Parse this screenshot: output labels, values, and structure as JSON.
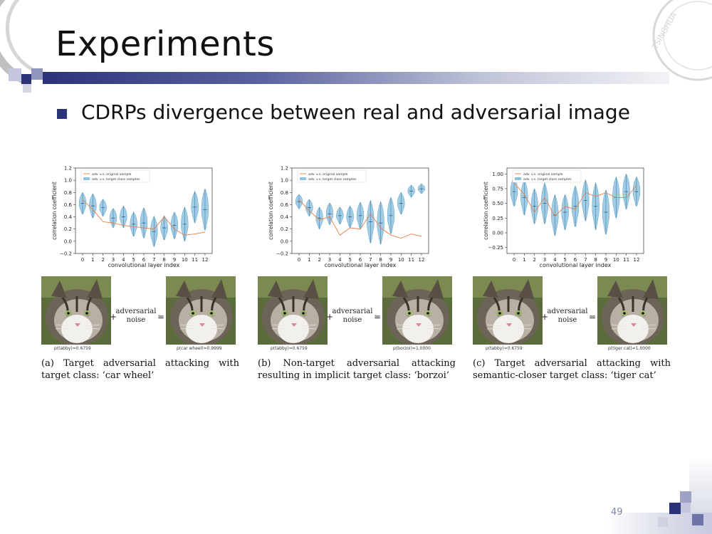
{
  "slide": {
    "title": "Experiments",
    "bullet": "CDRPs divergence between real and adversarial image",
    "page_number": "49",
    "accent_color": "#2b3479"
  },
  "panels": [
    {
      "id": "a",
      "caption": "(a) Target adversarial attacking with target class: ‘car wheel’",
      "original_prob": "p(tabby)=0.6759",
      "adv_prob": "p(car wheel)=0.9999",
      "noise_label_1": "adversarial",
      "noise_label_2": "noise",
      "plus": "+",
      "equals": "="
    },
    {
      "id": "b",
      "caption": "(b) Non-target adversarial attacking resulting in implicit target class: ‘borzoi’",
      "original_prob": "p(tabby)=0.6759",
      "adv_prob": "p(borzoi)=1.0000",
      "noise_label_1": "adversarial",
      "noise_label_2": "noise",
      "plus": "+",
      "equals": "="
    },
    {
      "id": "c",
      "caption": "(c) Target adversarial attacking with semantic-closer target class: ‘tiger cat’",
      "original_prob": "p(tabby)=0.6759",
      "adv_prob": "p(tiger cat)=1.0000",
      "noise_label_1": "adversarial",
      "noise_label_2": "noise",
      "plus": "+",
      "equals": "="
    }
  ],
  "chart_data": [
    {
      "type": "line",
      "xlabel": "convolutional layer index",
      "ylabel": "correlation coefficient",
      "x": [
        0,
        1,
        2,
        3,
        4,
        5,
        6,
        7,
        8,
        9,
        10,
        11,
        12
      ],
      "ylim": [
        -0.2,
        1.2
      ],
      "yticks": [
        -0.2,
        0.0,
        0.2,
        0.4,
        0.6,
        0.8,
        1.0,
        1.2
      ],
      "yticklabels": [
        "−0.2",
        "0.0",
        "0.2",
        "0.4",
        "0.6",
        "0.8",
        "1.0",
        "1.2"
      ],
      "legend": [
        "adv. v.s. original sample",
        "adv. v.s. target class samples"
      ],
      "series": [
        {
          "name": "adv. v.s. original sample",
          "values": [
            0.68,
            0.52,
            0.32,
            0.3,
            0.26,
            0.24,
            0.22,
            0.2,
            0.4,
            0.2,
            0.1,
            0.12,
            0.15
          ]
        },
        {
          "name": "adv. v.s. target class samples",
          "values": [
            0.62,
            0.58,
            0.55,
            0.38,
            0.4,
            0.28,
            0.3,
            0.16,
            0.22,
            0.26,
            0.28,
            0.56,
            0.52
          ]
        }
      ],
      "spread": [
        0.18,
        0.2,
        0.14,
        0.16,
        0.18,
        0.2,
        0.25,
        0.25,
        0.2,
        0.22,
        0.28,
        0.26,
        0.34
      ],
      "colors": {
        "line": "#e8804a",
        "violin": "#8fc4e0"
      }
    },
    {
      "type": "line",
      "xlabel": "convolutional layer index",
      "ylabel": "correlation coefficient",
      "x": [
        0,
        1,
        2,
        3,
        4,
        5,
        6,
        7,
        8,
        9,
        10,
        11,
        12
      ],
      "ylim": [
        -0.2,
        1.2
      ],
      "yticks": [
        -0.2,
        0.0,
        0.2,
        0.4,
        0.6,
        0.8,
        1.0,
        1.2
      ],
      "yticklabels": [
        "−0.2",
        "0.0",
        "0.2",
        "0.4",
        "0.6",
        "0.8",
        "1.0",
        "1.2"
      ],
      "legend": [
        "adv. v.s. original sample",
        "adv. v.s. target class samples"
      ],
      "series": [
        {
          "name": "adv. v.s. original sample",
          "values": [
            0.68,
            0.5,
            0.35,
            0.4,
            0.1,
            0.22,
            0.2,
            0.45,
            0.22,
            0.1,
            0.05,
            0.12,
            0.08
          ]
        },
        {
          "name": "adv. v.s. target class samples",
          "values": [
            0.65,
            0.55,
            0.38,
            0.45,
            0.42,
            0.4,
            0.42,
            0.32,
            0.3,
            0.42,
            0.62,
            0.82,
            0.86
          ]
        }
      ],
      "spread": [
        0.12,
        0.14,
        0.18,
        0.18,
        0.14,
        0.18,
        0.22,
        0.35,
        0.35,
        0.3,
        0.18,
        0.1,
        0.08
      ],
      "colors": {
        "line": "#e8804a",
        "violin": "#8fc4e0"
      }
    },
    {
      "type": "line",
      "xlabel": "convolutional layer index",
      "ylabel": "correlation coefficient",
      "x": [
        0,
        1,
        2,
        3,
        4,
        5,
        6,
        7,
        8,
        9,
        10,
        11,
        12
      ],
      "ylim": [
        -0.35,
        1.1
      ],
      "yticks": [
        -0.25,
        0.0,
        0.25,
        0.5,
        0.75,
        1.0
      ],
      "yticklabels": [
        "−0.25",
        "0.00",
        "0.25",
        "0.50",
        "0.75",
        "1.00"
      ],
      "legend": [
        "adv. v.s. original sample",
        "adv. v.s. target class samples"
      ],
      "series": [
        {
          "name": "adv. v.s. original sample",
          "values": [
            0.85,
            0.65,
            0.35,
            0.6,
            0.28,
            0.45,
            0.4,
            0.68,
            0.62,
            0.68,
            0.6,
            0.6,
            0.8
          ]
        },
        {
          "name": "adv. v.s. target class samples",
          "values": [
            0.7,
            0.6,
            0.45,
            0.5,
            0.3,
            0.35,
            0.45,
            0.55,
            0.45,
            0.35,
            0.6,
            0.7,
            0.7
          ]
        }
      ],
      "spread": [
        0.25,
        0.3,
        0.3,
        0.35,
        0.35,
        0.3,
        0.35,
        0.35,
        0.4,
        0.38,
        0.35,
        0.3,
        0.25
      ],
      "colors": {
        "line": "#e8804a",
        "violin": "#8fc4e0"
      }
    }
  ]
}
